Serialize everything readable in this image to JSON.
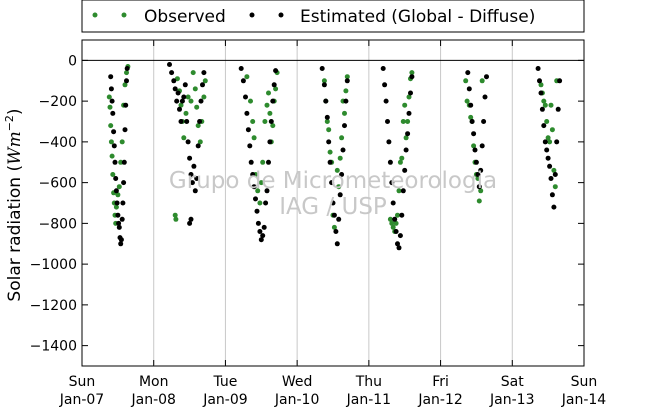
{
  "chart_data": {
    "type": "scatter",
    "title": "",
    "ylabel_main": "Solar radiation (",
    "ylabel_unit": "Wm",
    "ylabel_exp": "−2",
    "ylabel_close": ")",
    "ylim": [
      -1500,
      100
    ],
    "yticks": [
      0,
      -200,
      -400,
      -600,
      -800,
      -1000,
      -1200,
      -1400
    ],
    "xlim": [
      0,
      7
    ],
    "xticks": [
      {
        "x": 0,
        "day": "Sun",
        "date": "Jan-07"
      },
      {
        "x": 1,
        "day": "Mon",
        "date": "Jan-08"
      },
      {
        "x": 2,
        "day": "Tue",
        "date": "Jan-09"
      },
      {
        "x": 3,
        "day": "Wed",
        "date": "Jan-10"
      },
      {
        "x": 4,
        "day": "Thu",
        "date": "Jan-11"
      },
      {
        "x": 5,
        "day": "Fri",
        "date": "Jan-12"
      },
      {
        "x": 6,
        "day": "Sat",
        "date": "Jan-13"
      },
      {
        "x": 7,
        "day": "Sun",
        "date": "Jan-14"
      }
    ],
    "grid": "vertical",
    "legend_position": "top",
    "watermark": [
      "Grupo de Micrometeorologia",
      "IAG / USP"
    ],
    "series": [
      {
        "name": "Observed",
        "color": "#2e8b2e",
        "points": [
          [
            0.38,
            -180
          ],
          [
            0.39,
            -230
          ],
          [
            0.4,
            -320
          ],
          [
            0.41,
            -400
          ],
          [
            0.42,
            -470
          ],
          [
            0.43,
            -560
          ],
          [
            0.44,
            -650
          ],
          [
            0.45,
            -700
          ],
          [
            0.46,
            -760
          ],
          [
            0.47,
            -800
          ],
          [
            0.48,
            -720
          ],
          [
            0.5,
            -660
          ],
          [
            0.52,
            -620
          ],
          [
            0.54,
            -500
          ],
          [
            0.56,
            -400
          ],
          [
            0.58,
            -220
          ],
          [
            0.6,
            -120
          ],
          [
            0.62,
            -60
          ],
          [
            0.64,
            -30
          ],
          [
            1.3,
            -760
          ],
          [
            1.31,
            -780
          ],
          [
            1.33,
            -90
          ],
          [
            1.36,
            -150
          ],
          [
            1.38,
            -220
          ],
          [
            1.4,
            -300
          ],
          [
            1.42,
            -380
          ],
          [
            1.45,
            -260
          ],
          [
            1.48,
            -180
          ],
          [
            1.52,
            -200
          ],
          [
            1.55,
            -60
          ],
          [
            1.58,
            -140
          ],
          [
            1.6,
            -230
          ],
          [
            1.62,
            -320
          ],
          [
            1.65,
            -400
          ],
          [
            1.67,
            -300
          ],
          [
            1.7,
            -180
          ],
          [
            1.72,
            -100
          ],
          [
            2.3,
            -80
          ],
          [
            2.35,
            -200
          ],
          [
            2.38,
            -300
          ],
          [
            2.4,
            -380
          ],
          [
            2.42,
            -560
          ],
          [
            2.45,
            -640
          ],
          [
            2.48,
            -700
          ],
          [
            2.5,
            -600
          ],
          [
            2.52,
            -500
          ],
          [
            2.55,
            -300
          ],
          [
            2.58,
            -220
          ],
          [
            2.6,
            -160
          ],
          [
            2.62,
            -260
          ],
          [
            2.64,
            -400
          ],
          [
            2.66,
            -320
          ],
          [
            2.68,
            -200
          ],
          [
            2.7,
            -140
          ],
          [
            2.72,
            -60
          ],
          [
            3.38,
            -100
          ],
          [
            3.4,
            -200
          ],
          [
            3.42,
            -300
          ],
          [
            3.44,
            -340
          ],
          [
            3.46,
            -450
          ],
          [
            3.48,
            -500
          ],
          [
            3.5,
            -760
          ],
          [
            3.52,
            -820
          ],
          [
            3.56,
            -540
          ],
          [
            3.58,
            -620
          ],
          [
            3.6,
            -480
          ],
          [
            3.62,
            -380
          ],
          [
            3.64,
            -200
          ],
          [
            3.66,
            -260
          ],
          [
            3.68,
            -150
          ],
          [
            3.7,
            -80
          ],
          [
            4.3,
            -780
          ],
          [
            4.32,
            -800
          ],
          [
            4.34,
            -820
          ],
          [
            4.36,
            -840
          ],
          [
            4.38,
            -800
          ],
          [
            4.4,
            -760
          ],
          [
            4.42,
            -640
          ],
          [
            4.44,
            -500
          ],
          [
            4.46,
            -480
          ],
          [
            4.48,
            -300
          ],
          [
            4.5,
            -220
          ],
          [
            4.52,
            -380
          ],
          [
            4.54,
            -300
          ],
          [
            4.56,
            -180
          ],
          [
            4.58,
            -90
          ],
          [
            4.6,
            -60
          ],
          [
            5.35,
            -100
          ],
          [
            5.37,
            -200
          ],
          [
            5.4,
            -220
          ],
          [
            5.42,
            -280
          ],
          [
            5.44,
            -300
          ],
          [
            5.46,
            -420
          ],
          [
            5.48,
            -500
          ],
          [
            5.5,
            -560
          ],
          [
            5.52,
            -580
          ],
          [
            5.54,
            -690
          ],
          [
            5.56,
            -640
          ],
          [
            5.58,
            -100
          ],
          [
            6.4,
            -120
          ],
          [
            6.42,
            -160
          ],
          [
            6.44,
            -200
          ],
          [
            6.46,
            -220
          ],
          [
            6.48,
            -300
          ],
          [
            6.5,
            -380
          ],
          [
            6.52,
            -400
          ],
          [
            6.54,
            -220
          ],
          [
            6.56,
            -340
          ],
          [
            6.58,
            -540
          ],
          [
            6.6,
            -620
          ],
          [
            6.62,
            -100
          ]
        ]
      },
      {
        "name": "Estimated (Global - Diffuse)",
        "color": "#000000",
        "points": [
          [
            0.4,
            -80
          ],
          [
            0.41,
            -140
          ],
          [
            0.42,
            -200
          ],
          [
            0.43,
            -260
          ],
          [
            0.44,
            -350
          ],
          [
            0.45,
            -420
          ],
          [
            0.46,
            -500
          ],
          [
            0.47,
            -580
          ],
          [
            0.48,
            -640
          ],
          [
            0.49,
            -700
          ],
          [
            0.5,
            -760
          ],
          [
            0.51,
            -800
          ],
          [
            0.52,
            -820
          ],
          [
            0.53,
            -870
          ],
          [
            0.54,
            -900
          ],
          [
            0.55,
            -880
          ],
          [
            0.56,
            -780
          ],
          [
            0.57,
            -700
          ],
          [
            0.58,
            -600
          ],
          [
            0.59,
            -500
          ],
          [
            0.6,
            -340
          ],
          [
            0.61,
            -220
          ],
          [
            0.62,
            -100
          ],
          [
            0.63,
            -40
          ],
          [
            1.22,
            -20
          ],
          [
            1.25,
            -60
          ],
          [
            1.28,
            -100
          ],
          [
            1.3,
            -140
          ],
          [
            1.32,
            -200
          ],
          [
            1.34,
            -160
          ],
          [
            1.36,
            -240
          ],
          [
            1.38,
            -300
          ],
          [
            1.4,
            -200
          ],
          [
            1.42,
            -180
          ],
          [
            1.44,
            -120
          ],
          [
            1.46,
            -300
          ],
          [
            1.48,
            -400
          ],
          [
            1.5,
            -480
          ],
          [
            1.52,
            -560
          ],
          [
            1.54,
            -600
          ],
          [
            1.56,
            -520
          ],
          [
            1.58,
            -640
          ],
          [
            1.6,
            -580
          ],
          [
            1.62,
            -420
          ],
          [
            1.64,
            -300
          ],
          [
            1.66,
            -200
          ],
          [
            1.68,
            -120
          ],
          [
            1.7,
            -60
          ],
          [
            1.52,
            -780
          ],
          [
            1.5,
            -800
          ],
          [
            2.22,
            -40
          ],
          [
            2.25,
            -100
          ],
          [
            2.28,
            -180
          ],
          [
            2.3,
            -260
          ],
          [
            2.32,
            -340
          ],
          [
            2.34,
            -420
          ],
          [
            2.36,
            -500
          ],
          [
            2.38,
            -560
          ],
          [
            2.4,
            -620
          ],
          [
            2.42,
            -680
          ],
          [
            2.44,
            -740
          ],
          [
            2.46,
            -800
          ],
          [
            2.48,
            -840
          ],
          [
            2.5,
            -880
          ],
          [
            2.52,
            -860
          ],
          [
            2.54,
            -820
          ],
          [
            2.56,
            -700
          ],
          [
            2.58,
            -640
          ],
          [
            2.6,
            -500
          ],
          [
            2.62,
            -400
          ],
          [
            2.64,
            -300
          ],
          [
            2.66,
            -200
          ],
          [
            2.68,
            -120
          ],
          [
            2.7,
            -50
          ],
          [
            3.35,
            -40
          ],
          [
            3.38,
            -120
          ],
          [
            3.4,
            -200
          ],
          [
            3.42,
            -280
          ],
          [
            3.44,
            -400
          ],
          [
            3.46,
            -500
          ],
          [
            3.48,
            -600
          ],
          [
            3.5,
            -700
          ],
          [
            3.52,
            -760
          ],
          [
            3.54,
            -840
          ],
          [
            3.56,
            -900
          ],
          [
            3.58,
            -780
          ],
          [
            3.6,
            -660
          ],
          [
            3.62,
            -560
          ],
          [
            3.64,
            -440
          ],
          [
            3.66,
            -320
          ],
          [
            3.68,
            -200
          ],
          [
            3.7,
            -100
          ],
          [
            4.2,
            -40
          ],
          [
            4.22,
            -120
          ],
          [
            4.24,
            -200
          ],
          [
            4.26,
            -300
          ],
          [
            4.28,
            -400
          ],
          [
            4.3,
            -500
          ],
          [
            4.32,
            -600
          ],
          [
            4.34,
            -700
          ],
          [
            4.36,
            -780
          ],
          [
            4.38,
            -840
          ],
          [
            4.4,
            -900
          ],
          [
            4.42,
            -920
          ],
          [
            4.44,
            -860
          ],
          [
            4.46,
            -760
          ],
          [
            4.48,
            -640
          ],
          [
            4.5,
            -540
          ],
          [
            4.52,
            -440
          ],
          [
            4.54,
            -360
          ],
          [
            4.56,
            -260
          ],
          [
            4.58,
            -160
          ],
          [
            4.6,
            -80
          ],
          [
            5.38,
            -60
          ],
          [
            5.4,
            -140
          ],
          [
            5.42,
            -220
          ],
          [
            5.44,
            -300
          ],
          [
            5.46,
            -360
          ],
          [
            5.48,
            -440
          ],
          [
            5.5,
            -500
          ],
          [
            5.52,
            -560
          ],
          [
            5.54,
            -620
          ],
          [
            5.56,
            -540
          ],
          [
            5.58,
            -420
          ],
          [
            5.6,
            -300
          ],
          [
            5.62,
            -180
          ],
          [
            5.64,
            -80
          ],
          [
            6.36,
            -40
          ],
          [
            6.38,
            -100
          ],
          [
            6.4,
            -160
          ],
          [
            6.42,
            -240
          ],
          [
            6.44,
            -320
          ],
          [
            6.46,
            -400
          ],
          [
            6.48,
            -440
          ],
          [
            6.5,
            -480
          ],
          [
            6.52,
            -520
          ],
          [
            6.54,
            -580
          ],
          [
            6.56,
            -660
          ],
          [
            6.58,
            -720
          ],
          [
            6.6,
            -560
          ],
          [
            6.62,
            -400
          ],
          [
            6.64,
            -240
          ],
          [
            6.66,
            -100
          ]
        ]
      }
    ]
  }
}
